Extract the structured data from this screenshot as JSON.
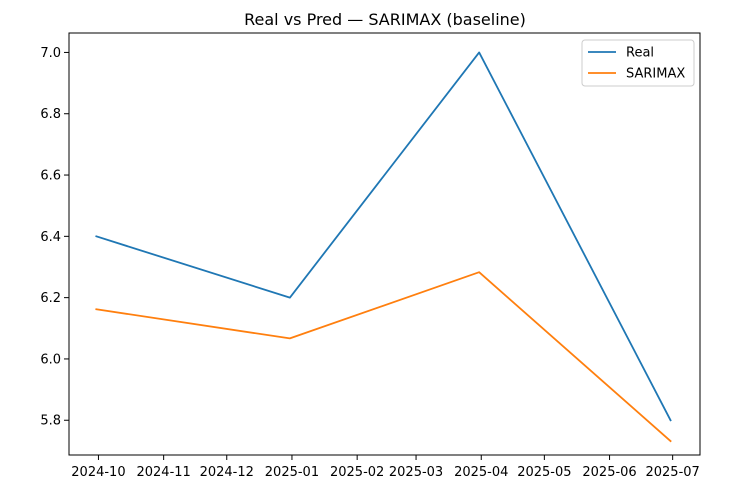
{
  "chart_data": {
    "type": "line",
    "title": "Real vs Pred — SARIMAX (baseline)",
    "xlabel": "",
    "ylabel": "",
    "x": [
      "2024-09-30",
      "2024-12-31",
      "2025-03-31",
      "2025-06-30"
    ],
    "series": [
      {
        "name": "Real",
        "color": "#1f77b4",
        "values": [
          6.4,
          6.2,
          7.0,
          5.8
        ]
      },
      {
        "name": "SARIMAX",
        "color": "#ff7f0e",
        "values": [
          6.162,
          6.067,
          6.283,
          5.732
        ]
      }
    ],
    "x_ticks": [
      "2024-10",
      "2024-11",
      "2024-12",
      "2025-01",
      "2025-02",
      "2025-03",
      "2025-04",
      "2025-05",
      "2025-06",
      "2025-07"
    ],
    "y_ticks": [
      "5.8",
      "6.0",
      "6.2",
      "6.4",
      "6.6",
      "6.8",
      "7.0"
    ],
    "xlim": [
      "2024-09-17",
      "2025-07-14"
    ],
    "ylim": [
      5.6866,
      7.0634
    ],
    "grid": false,
    "legend_position": "top-right"
  }
}
